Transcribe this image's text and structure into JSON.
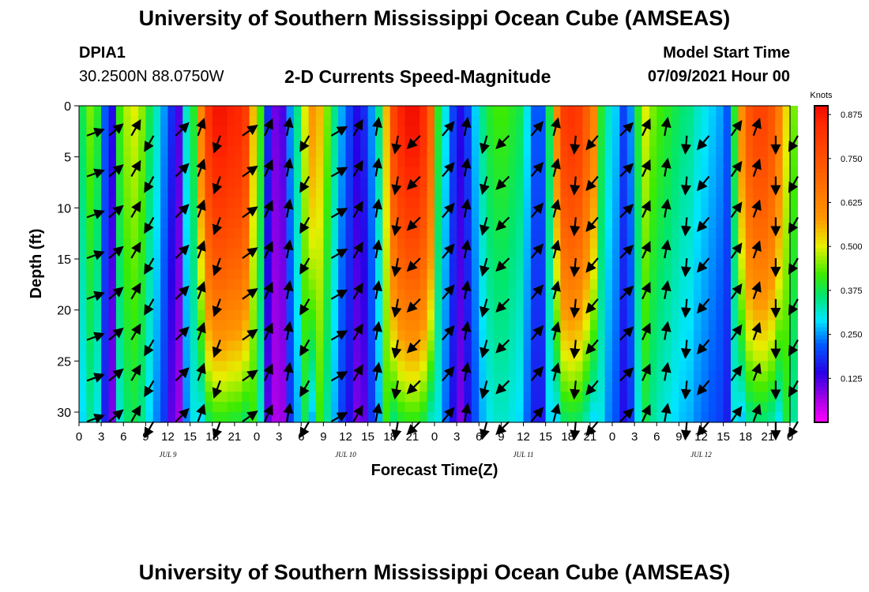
{
  "header": {
    "title": "University of Southern Mississippi Ocean Cube (AMSEAS)",
    "station": "DPIA1",
    "coords": "30.2500N  88.0750W",
    "subtitle": "2-D Currents Speed-Magnitude",
    "model_start_label": "Model Start Time",
    "model_start_value": "07/09/2021 Hour 00"
  },
  "footer": {
    "title": "University of Southern Mississippi Ocean Cube (AMSEAS)"
  },
  "chart_data": {
    "type": "heatmap",
    "xlabel": "Forecast Time(Z)",
    "ylabel": "Depth (ft)",
    "x_ticks": [
      "0",
      "3",
      "6",
      "9",
      "12",
      "15",
      "18",
      "21",
      "0",
      "3",
      "6",
      "9",
      "12",
      "15",
      "18",
      "21",
      "0",
      "3",
      "6",
      "9",
      "12",
      "15",
      "18",
      "21",
      "0",
      "3",
      "6",
      "9",
      "12",
      "15",
      "18",
      "21",
      "0"
    ],
    "x_range_hours": [
      0,
      96
    ],
    "day_labels": [
      "JUL 9",
      "JUL 10",
      "JUL 11",
      "JUL 12"
    ],
    "y_ticks": [
      0,
      5,
      10,
      15,
      20,
      25,
      30
    ],
    "ylim": [
      0,
      31
    ],
    "colorbar": {
      "label": "Knots",
      "range": [
        0,
        0.9
      ],
      "ticks": [
        "0.875",
        "0.750",
        "0.625",
        "0.500",
        "0.375",
        "0.250",
        "0.125"
      ],
      "tick_values": [
        0.875,
        0.75,
        0.625,
        0.5,
        0.375,
        0.25,
        0.125
      ]
    },
    "speed_surface_max_by_hour": [
      0.38,
      0.45,
      0.4,
      0.22,
      0.15,
      0.42,
      0.48,
      0.5,
      0.46,
      0.38,
      0.32,
      0.25,
      0.18,
      0.12,
      0.32,
      0.4,
      0.62,
      0.82,
      0.88,
      0.88,
      0.86,
      0.85,
      0.8,
      0.55,
      0.42,
      0.18,
      0.1,
      0.12,
      0.25,
      0.35,
      0.5,
      0.58,
      0.55,
      0.45,
      0.35,
      0.26,
      0.2,
      0.15,
      0.18,
      0.25,
      0.35,
      0.55,
      0.78,
      0.86,
      0.89,
      0.89,
      0.84,
      0.7,
      0.4,
      0.3,
      0.2,
      0.15,
      0.2,
      0.28,
      0.35,
      0.4,
      0.42,
      0.42,
      0.4,
      0.38,
      0.3,
      0.22,
      0.22,
      0.38,
      0.62,
      0.8,
      0.82,
      0.8,
      0.72,
      0.62,
      0.4,
      0.32,
      0.28,
      0.2,
      0.25,
      0.4,
      0.5,
      0.45,
      0.42,
      0.4,
      0.38,
      0.36,
      0.35,
      0.32,
      0.3,
      0.28,
      0.26,
      0.22,
      0.4,
      0.6,
      0.74,
      0.78,
      0.78,
      0.74,
      0.64,
      0.52,
      0.45
    ],
    "vector_times_hours": [
      0,
      3,
      6,
      9,
      12,
      15,
      18,
      21,
      24,
      27,
      30,
      33,
      36,
      39,
      42,
      45,
      48,
      51,
      54,
      57,
      60,
      63,
      66,
      69,
      72,
      75,
      78,
      81,
      84,
      87,
      90,
      93,
      96
    ],
    "vector_depths_ft": [
      2,
      6,
      10,
      14,
      18,
      22,
      26,
      30
    ],
    "vector_direction_deg_by_time": [
      70,
      60,
      55,
      50,
      45,
      40,
      30,
      195,
      200,
      210,
      220,
      50,
      45,
      40,
      30,
      20,
      85,
      100,
      200,
      210,
      220,
      55,
      45,
      35,
      25,
      20,
      15,
      10,
      175,
      190,
      210,
      220,
      230,
      60,
      50,
      40,
      30,
      25,
      20,
      10,
      5,
      170,
      190,
      205,
      215,
      225,
      60,
      50,
      40,
      35,
      25,
      10,
      175,
      180,
      195,
      205,
      215,
      225,
      60,
      50,
      40,
      30,
      25,
      15,
      10,
      180,
      185,
      200,
      210,
      220,
      230,
      55,
      45,
      40,
      30,
      25,
      20,
      15,
      10,
      5,
      175,
      185,
      200,
      210,
      220,
      45,
      40,
      35,
      30,
      25,
      20,
      15,
      10,
      180,
      190,
      200,
      210
    ]
  }
}
